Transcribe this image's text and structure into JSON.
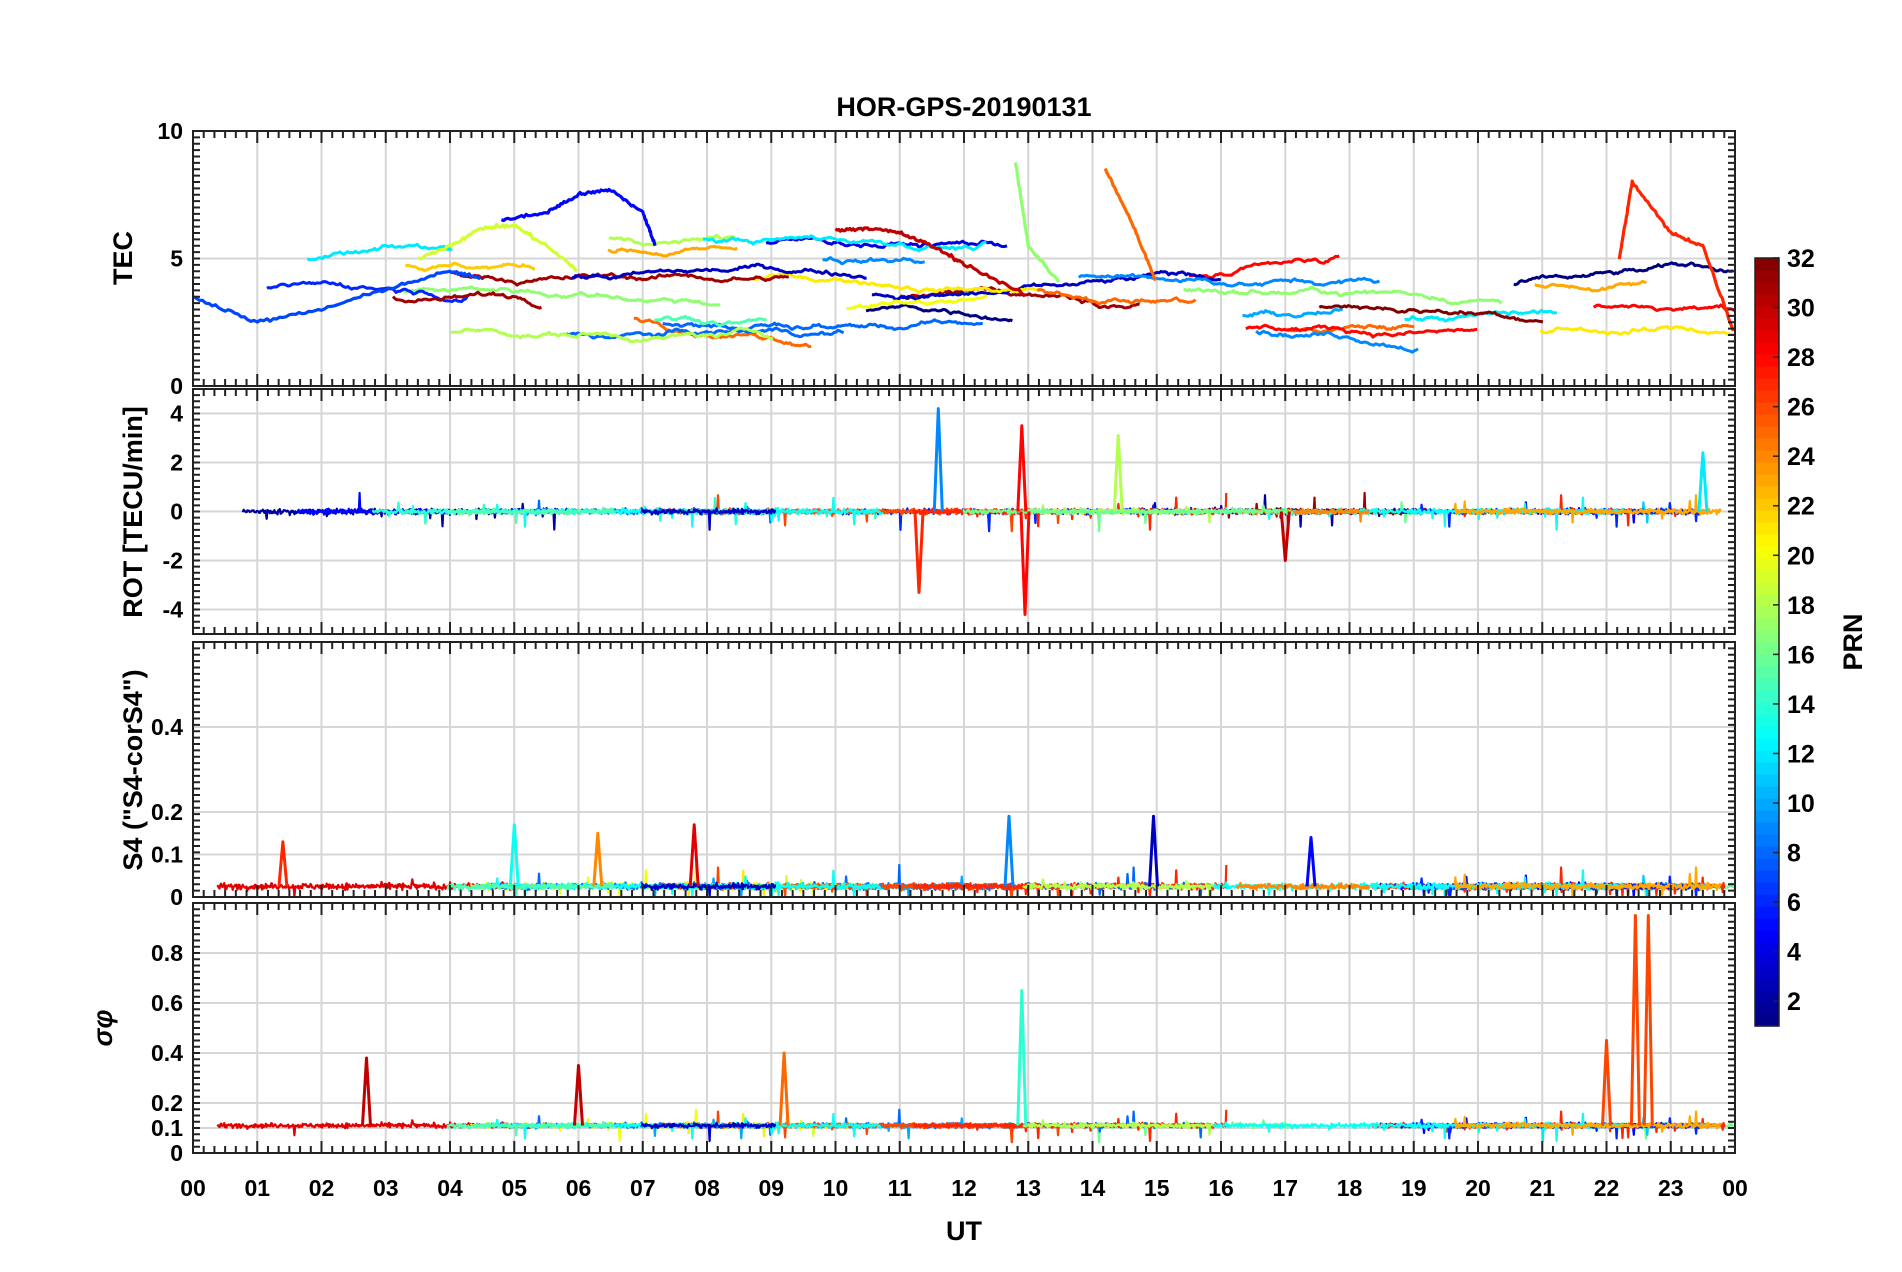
{
  "chart_data": {
    "type": "line",
    "title": "HOR-GPS-20190131",
    "xlabel": "UT",
    "x_tick_labels": [
      "00",
      "01",
      "02",
      "03",
      "04",
      "05",
      "06",
      "07",
      "08",
      "09",
      "10",
      "11",
      "12",
      "13",
      "14",
      "15",
      "16",
      "17",
      "18",
      "19",
      "20",
      "21",
      "22",
      "23",
      "00"
    ],
    "xlim": [
      0,
      24
    ],
    "grid": true,
    "colorbar": {
      "label": "PRN",
      "range": [
        1,
        32
      ],
      "ticks": [
        "2",
        "4",
        "6",
        "8",
        "10",
        "12",
        "14",
        "16",
        "18",
        "20",
        "22",
        "24",
        "26",
        "28",
        "30",
        "32"
      ],
      "placement": "right"
    },
    "panels": [
      {
        "name": "tec",
        "ylabel": "TEC",
        "ylim": [
          0,
          10
        ],
        "ytick_labels": [
          "0",
          "5",
          "10"
        ],
        "representative_series": [
          {
            "prn": 5,
            "x": [
              4.8,
              5.5,
              6.0,
              6.5,
              7.0,
              7.2
            ],
            "y": [
              6.5,
              6.8,
              7.5,
              7.7,
              6.8,
              5.5
            ]
          },
          {
            "prn": 30,
            "x": [
              10.0,
              10.5,
              11.0,
              11.5,
              12.0,
              13.0
            ],
            "y": [
              6.1,
              6.2,
              6.0,
              5.5,
              4.8,
              3.5
            ]
          },
          {
            "prn": 25,
            "x": [
              14.2,
              14.6,
              15.0
            ],
            "y": [
              8.5,
              6.5,
              4.0
            ]
          },
          {
            "prn": 27,
            "x": [
              22.2,
              22.4,
              23.0,
              23.5,
              24.0
            ],
            "y": [
              5.0,
              8.0,
              6.0,
              5.5,
              2.0
            ]
          },
          {
            "prn": 17,
            "x": [
              12.8,
              13.0,
              13.5
            ],
            "y": [
              8.8,
              5.5,
              4.0
            ]
          },
          {
            "prn": 7,
            "x": [
              0.0,
              1.0,
              2.0,
              3.0,
              4.0,
              4.5
            ],
            "y": [
              3.5,
              2.5,
              3.0,
              3.8,
              4.5,
              4.2
            ]
          },
          {
            "prn": 19,
            "x": [
              3.5,
              4.0,
              4.5,
              5.0,
              5.5,
              6.0
            ],
            "y": [
              5.0,
              5.5,
              6.2,
              6.3,
              5.5,
              4.5
            ]
          }
        ]
      },
      {
        "name": "rot",
        "ylabel": "ROT [TECU/min]",
        "ylim": [
          -5,
          5
        ],
        "ytick_labels": [
          "-4",
          "-2",
          "0",
          "2",
          "4"
        ],
        "notable_peaks": [
          {
            "prn": 9,
            "x": 11.6,
            "y": 4.2
          },
          {
            "prn": 28,
            "x": 12.9,
            "y": 3.5
          },
          {
            "prn": 28,
            "x": 12.95,
            "y": -4.2
          },
          {
            "prn": 27,
            "x": 11.3,
            "y": -3.3
          },
          {
            "prn": 18,
            "x": 14.4,
            "y": 3.1
          },
          {
            "prn": 12,
            "x": 23.5,
            "y": 2.4
          },
          {
            "prn": 30,
            "x": 17.0,
            "y": -2.0
          }
        ]
      },
      {
        "name": "s4",
        "ylabel": "S4 (\"S4-corS4\")",
        "ylim": [
          0,
          0.6
        ],
        "ytick_labels": [
          "0",
          "0.1",
          "0.2",
          "0.4"
        ],
        "notable_peaks": [
          {
            "prn": 9,
            "x": 12.7,
            "y": 0.19
          },
          {
            "prn": 3,
            "x": 14.95,
            "y": 0.19
          },
          {
            "prn": 13,
            "x": 5.0,
            "y": 0.17
          },
          {
            "prn": 29,
            "x": 7.8,
            "y": 0.17
          },
          {
            "prn": 24,
            "x": 6.3,
            "y": 0.15
          },
          {
            "prn": 27,
            "x": 1.4,
            "y": 0.13
          },
          {
            "prn": 5,
            "x": 17.4,
            "y": 0.14
          }
        ]
      },
      {
        "name": "sigma_phi",
        "ylabel": "σφ",
        "ylim": [
          0,
          1
        ],
        "ytick_labels": [
          "0",
          "0.1",
          "0.2",
          "0.4",
          "0.6",
          "0.8"
        ],
        "notable_peaks": [
          {
            "prn": 30,
            "x": 2.7,
            "y": 0.38
          },
          {
            "prn": 30,
            "x": 6.0,
            "y": 0.35
          },
          {
            "prn": 25,
            "x": 9.2,
            "y": 0.4
          },
          {
            "prn": 14,
            "x": 12.9,
            "y": 0.65
          },
          {
            "prn": 26,
            "x": 22.0,
            "y": 0.45
          },
          {
            "prn": 26,
            "x": 22.45,
            "y": 0.95
          },
          {
            "prn": 26,
            "x": 22.65,
            "y": 0.95
          }
        ]
      }
    ]
  }
}
